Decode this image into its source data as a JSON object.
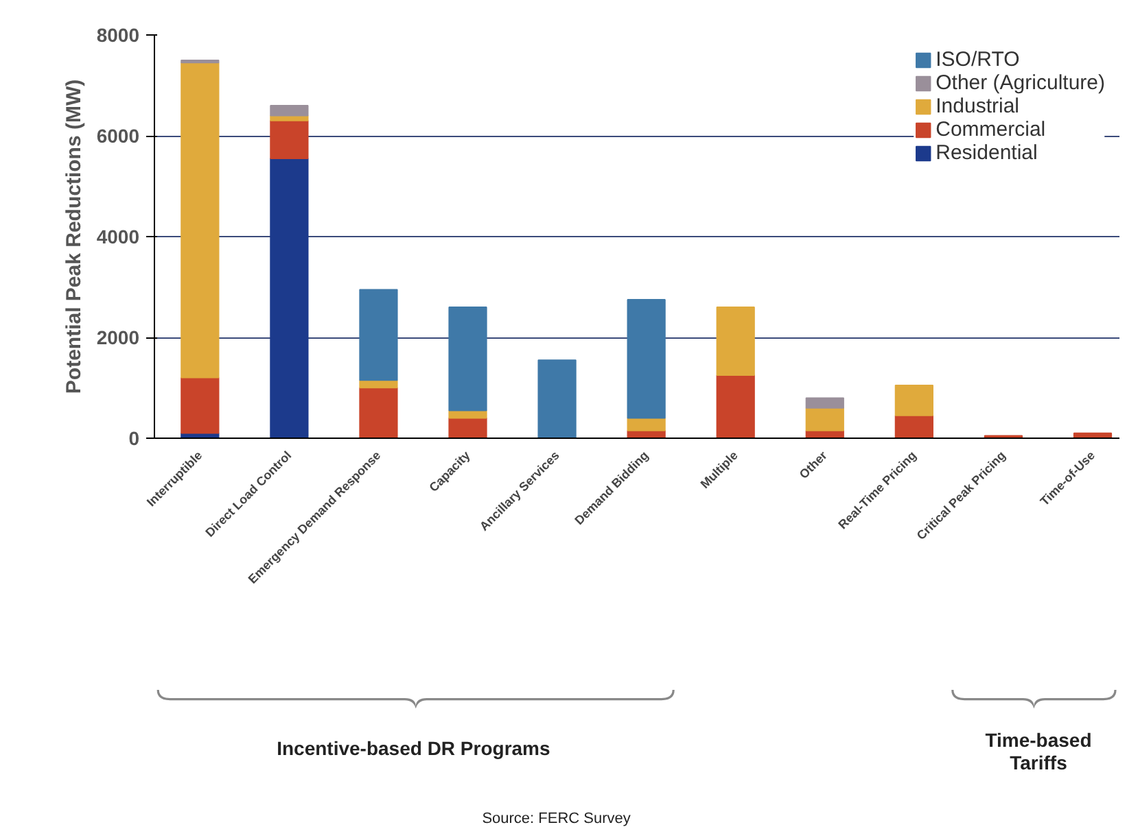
{
  "chart_data": {
    "type": "bar",
    "stacked": true,
    "ylabel": "Potential Peak Reductions (MW)",
    "categories": [
      "Interruptible",
      "Direct Load Control",
      "Emergency Demand Response",
      "Capacity",
      "Ancillary Services",
      "Demand Bidding",
      "Multiple",
      "Other",
      "Real-Time Pricing",
      "Critical Peak Pricing",
      "Time-of-Use"
    ],
    "series": [
      {
        "name": "Residential",
        "color": "#1c3a8c",
        "values": [
          100,
          5550,
          0,
          0,
          0,
          0,
          0,
          0,
          0,
          0,
          0
        ]
      },
      {
        "name": "Commercial",
        "color": "#c9442a",
        "values": [
          1100,
          750,
          1000,
          400,
          0,
          150,
          1250,
          150,
          450,
          50,
          100
        ]
      },
      {
        "name": "Industrial",
        "color": "#e0aa3c",
        "values": [
          6250,
          100,
          150,
          150,
          0,
          250,
          1350,
          450,
          600,
          0,
          0
        ]
      },
      {
        "name": "Other (Agriculture)",
        "color": "#9a8f9a",
        "values": [
          50,
          200,
          0,
          0,
          0,
          0,
          0,
          200,
          0,
          0,
          0
        ]
      },
      {
        "name": "ISO/RTO",
        "color": "#3f79a8",
        "values": [
          0,
          0,
          1800,
          2050,
          1550,
          2350,
          0,
          0,
          0,
          0,
          0
        ]
      }
    ],
    "ylim": [
      0,
      8000
    ],
    "yticks": [
      0,
      2000,
      4000,
      6000,
      8000
    ],
    "grid": "y",
    "legend": "top right",
    "annotations": [
      "Incentive-based DR Programs",
      "Time-based\nTariffs",
      "Source: FERC Survey"
    ]
  }
}
